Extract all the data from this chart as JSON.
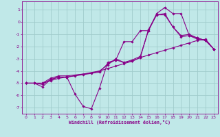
{
  "xlabel": "Windchill (Refroidissement éolien,°C)",
  "bg_color": "#c0e8e8",
  "grid_color": "#a0cccc",
  "line_color": "#880088",
  "xlim": [
    -0.5,
    23.5
  ],
  "ylim": [
    -7.5,
    1.7
  ],
  "yticks": [
    1,
    0,
    -1,
    -2,
    -3,
    -4,
    -5,
    -6,
    -7
  ],
  "xticks": [
    0,
    1,
    2,
    3,
    4,
    5,
    6,
    7,
    8,
    9,
    10,
    11,
    12,
    13,
    14,
    15,
    16,
    17,
    18,
    19,
    20,
    21,
    22,
    23
  ],
  "line1_x": [
    0,
    1,
    2,
    3,
    4,
    5,
    6,
    7,
    8,
    9,
    10,
    11,
    12,
    13,
    14,
    15,
    16,
    17,
    18,
    19,
    20,
    21,
    22,
    23
  ],
  "line1_y": [
    -5.0,
    -5.0,
    -5.3,
    -4.7,
    -4.5,
    -4.5,
    -5.9,
    -6.9,
    -7.1,
    -5.4,
    -3.3,
    -3.1,
    -1.6,
    -1.6,
    -0.7,
    -0.7,
    0.7,
    1.2,
    0.7,
    0.7,
    -1.1,
    -1.3,
    -1.5,
    -2.2
  ],
  "line2_x": [
    0,
    1,
    2,
    3,
    4,
    5,
    6,
    7,
    8,
    9,
    10,
    11,
    12,
    13,
    14,
    15,
    16,
    17,
    18,
    19,
    20,
    21,
    22,
    23
  ],
  "line2_y": [
    -5.0,
    -5.0,
    -5.0,
    -4.8,
    -4.6,
    -4.5,
    -4.4,
    -4.3,
    -4.2,
    -4.0,
    -3.8,
    -3.6,
    -3.4,
    -3.2,
    -2.9,
    -2.7,
    -2.5,
    -2.3,
    -2.1,
    -1.9,
    -1.7,
    -1.5,
    -1.4,
    -2.2
  ],
  "line3_x": [
    0,
    1,
    2,
    3,
    4,
    5,
    9,
    10,
    11,
    12,
    13,
    14,
    15,
    16,
    17,
    18,
    19,
    20,
    21,
    22,
    23
  ],
  "line3_y": [
    -5.0,
    -5.0,
    -5.0,
    -4.6,
    -4.4,
    -4.4,
    -4.1,
    -3.4,
    -3.1,
    -3.3,
    -3.1,
    -2.8,
    -0.7,
    0.6,
    0.6,
    -0.4,
    -1.1,
    -1.0,
    -1.3,
    -1.5,
    -2.2
  ],
  "line4_x": [
    0,
    1,
    2,
    3,
    4,
    5,
    9,
    10,
    11,
    12,
    13,
    14,
    15,
    16,
    17,
    18,
    19,
    20,
    21,
    22,
    23
  ],
  "line4_y": [
    -5.0,
    -5.0,
    -5.1,
    -4.7,
    -4.5,
    -4.5,
    -4.0,
    -3.5,
    -3.0,
    -3.3,
    -3.2,
    -2.9,
    -0.6,
    0.6,
    0.7,
    -0.4,
    -1.2,
    -1.1,
    -1.4,
    -1.5,
    -2.2
  ]
}
